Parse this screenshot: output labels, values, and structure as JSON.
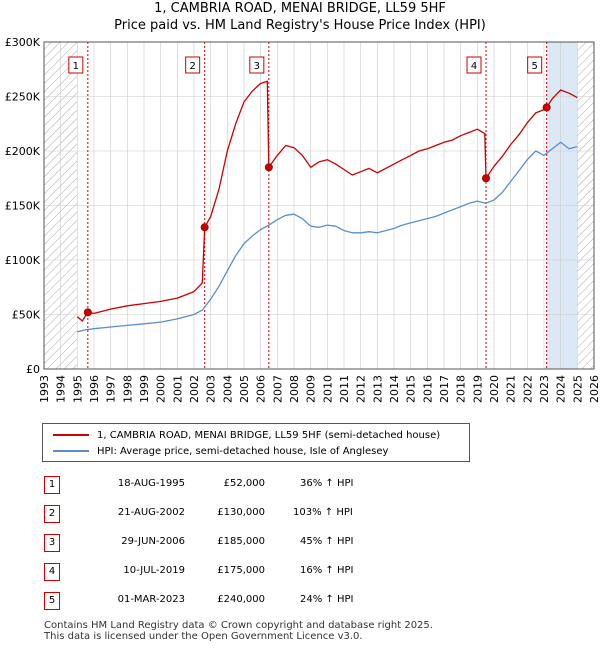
{
  "header": {
    "title_line1": "1, CAMBRIA ROAD, MENAI BRIDGE, LL59 5HF",
    "title_line2": "Price paid vs. HM Land Registry's House Price Index (HPI)"
  },
  "chart_data": {
    "type": "line",
    "xlim": [
      1993,
      2026
    ],
    "ylim": [
      0,
      300000
    ],
    "y_ticks": [
      {
        "value": 0,
        "label": "£0"
      },
      {
        "value": 50000,
        "label": "£50K"
      },
      {
        "value": 100000,
        "label": "£100K"
      },
      {
        "value": 150000,
        "label": "£150K"
      },
      {
        "value": 200000,
        "label": "£200K"
      },
      {
        "value": 250000,
        "label": "£250K"
      },
      {
        "value": 300000,
        "label": "£300K"
      }
    ],
    "x_ticks": [
      "1993",
      "1994",
      "1995",
      "1996",
      "1997",
      "1998",
      "1999",
      "2000",
      "2001",
      "2002",
      "2003",
      "2004",
      "2005",
      "2006",
      "2007",
      "2008",
      "2009",
      "2010",
      "2011",
      "2012",
      "2013",
      "2014",
      "2015",
      "2016",
      "2017",
      "2018",
      "2019",
      "2020",
      "2021",
      "2022",
      "2023",
      "2024",
      "2025",
      "2026"
    ],
    "data_start": 1995.0,
    "data_end": 2025.0,
    "series": [
      {
        "name": "1, CAMBRIA ROAD, MENAI BRIDGE, LL59 5HF (semi-detached house)",
        "color": "#cc0000",
        "points": [
          [
            1995.0,
            48000
          ],
          [
            1995.3,
            44000
          ],
          [
            1995.63,
            52000
          ],
          [
            1996.0,
            51000
          ],
          [
            1997.0,
            55000
          ],
          [
            1998.0,
            58000
          ],
          [
            1999.0,
            60000
          ],
          [
            2000.0,
            62000
          ],
          [
            2001.0,
            65000
          ],
          [
            2002.0,
            71000
          ],
          [
            2002.5,
            79000
          ],
          [
            2002.64,
            130000
          ],
          [
            2003.0,
            140000
          ],
          [
            2003.5,
            165000
          ],
          [
            2004.0,
            200000
          ],
          [
            2004.5,
            225000
          ],
          [
            2005.0,
            245000
          ],
          [
            2005.5,
            255000
          ],
          [
            2006.0,
            262000
          ],
          [
            2006.4,
            264000
          ],
          [
            2006.49,
            185000
          ],
          [
            2007.0,
            196000
          ],
          [
            2007.5,
            205000
          ],
          [
            2008.0,
            203000
          ],
          [
            2008.5,
            196000
          ],
          [
            2009.0,
            185000
          ],
          [
            2009.5,
            190000
          ],
          [
            2010.0,
            192000
          ],
          [
            2010.5,
            188000
          ],
          [
            2011.0,
            183000
          ],
          [
            2011.5,
            178000
          ],
          [
            2012.0,
            181000
          ],
          [
            2012.5,
            184000
          ],
          [
            2013.0,
            180000
          ],
          [
            2013.5,
            184000
          ],
          [
            2014.0,
            188000
          ],
          [
            2014.5,
            192000
          ],
          [
            2015.0,
            196000
          ],
          [
            2015.5,
            200000
          ],
          [
            2016.0,
            202000
          ],
          [
            2016.5,
            205000
          ],
          [
            2017.0,
            208000
          ],
          [
            2017.5,
            210000
          ],
          [
            2018.0,
            214000
          ],
          [
            2018.5,
            217000
          ],
          [
            2019.0,
            220000
          ],
          [
            2019.45,
            216000
          ],
          [
            2019.52,
            175000
          ],
          [
            2020.0,
            186000
          ],
          [
            2020.5,
            195000
          ],
          [
            2021.0,
            206000
          ],
          [
            2021.5,
            215000
          ],
          [
            2022.0,
            226000
          ],
          [
            2022.5,
            235000
          ],
          [
            2023.0,
            238000
          ],
          [
            2023.16,
            240000
          ],
          [
            2023.5,
            248000
          ],
          [
            2024.0,
            256000
          ],
          [
            2024.5,
            253000
          ],
          [
            2025.0,
            249000
          ]
        ]
      },
      {
        "name": "HPI: Average price, semi-detached house, Isle of Anglesey",
        "color": "#5a8fcc",
        "points": [
          [
            1995.0,
            34000
          ],
          [
            1995.5,
            36000
          ],
          [
            1996.0,
            37000
          ],
          [
            1997.0,
            38500
          ],
          [
            1998.0,
            40000
          ],
          [
            1999.0,
            41500
          ],
          [
            2000.0,
            43000
          ],
          [
            2001.0,
            46000
          ],
          [
            2002.0,
            50000
          ],
          [
            2002.5,
            54000
          ],
          [
            2003.0,
            64000
          ],
          [
            2003.5,
            76000
          ],
          [
            2004.0,
            90000
          ],
          [
            2004.5,
            104000
          ],
          [
            2005.0,
            115000
          ],
          [
            2005.5,
            122000
          ],
          [
            2006.0,
            128000
          ],
          [
            2006.5,
            132000
          ],
          [
            2007.0,
            137000
          ],
          [
            2007.5,
            141000
          ],
          [
            2008.0,
            142000
          ],
          [
            2008.5,
            138000
          ],
          [
            2009.0,
            131000
          ],
          [
            2009.5,
            130000
          ],
          [
            2010.0,
            132000
          ],
          [
            2010.5,
            131000
          ],
          [
            2011.0,
            127000
          ],
          [
            2011.5,
            125000
          ],
          [
            2012.0,
            125000
          ],
          [
            2012.5,
            126000
          ],
          [
            2013.0,
            125000
          ],
          [
            2013.5,
            127000
          ],
          [
            2014.0,
            129000
          ],
          [
            2014.5,
            132000
          ],
          [
            2015.0,
            134000
          ],
          [
            2015.5,
            136000
          ],
          [
            2016.0,
            138000
          ],
          [
            2016.5,
            140000
          ],
          [
            2017.0,
            143000
          ],
          [
            2017.5,
            146000
          ],
          [
            2018.0,
            149000
          ],
          [
            2018.5,
            152000
          ],
          [
            2019.0,
            154000
          ],
          [
            2019.5,
            152000
          ],
          [
            2020.0,
            155000
          ],
          [
            2020.5,
            162000
          ],
          [
            2021.0,
            172000
          ],
          [
            2021.5,
            182000
          ],
          [
            2022.0,
            192000
          ],
          [
            2022.5,
            200000
          ],
          [
            2023.0,
            196000
          ],
          [
            2023.5,
            202000
          ],
          [
            2024.0,
            208000
          ],
          [
            2024.5,
            202000
          ],
          [
            2025.0,
            204000
          ]
        ]
      }
    ],
    "sales": [
      {
        "label": "1",
        "date": "18-AUG-1995",
        "year": 1995.63,
        "price": 52000,
        "price_label": "£52,000",
        "hpi": "36% ↑ HPI"
      },
      {
        "label": "2",
        "date": "21-AUG-2002",
        "year": 2002.64,
        "price": 130000,
        "price_label": "£130,000",
        "hpi": "103% ↑ HPI"
      },
      {
        "label": "3",
        "date": "29-JUN-2006",
        "year": 2006.49,
        "price": 185000,
        "price_label": "£185,000",
        "hpi": "45% ↑ HPI"
      },
      {
        "label": "4",
        "date": "10-JUL-2019",
        "year": 2019.52,
        "price": 175000,
        "price_label": "£175,000",
        "hpi": "16% ↑ HPI"
      },
      {
        "label": "5",
        "date": "01-MAR-2023",
        "year": 2023.16,
        "price": 240000,
        "price_label": "£240,000",
        "hpi": "24% ↑ HPI"
      }
    ],
    "colors": {
      "sale_line": "#cc0000",
      "hpi_line": "#5a8fcc",
      "marker": "#cc0000",
      "grid": "#cccccc",
      "hatch": "#999999"
    }
  },
  "legend": {
    "property": "1, CAMBRIA ROAD, MENAI BRIDGE, LL59 5HF (semi-detached house)",
    "hpi": "HPI: Average price, semi-detached house, Isle of Anglesey"
  },
  "footer": {
    "line1": "Contains HM Land Registry data © Crown copyright and database right 2025.",
    "line2": "This data is licensed under the Open Government Licence v3.0."
  }
}
